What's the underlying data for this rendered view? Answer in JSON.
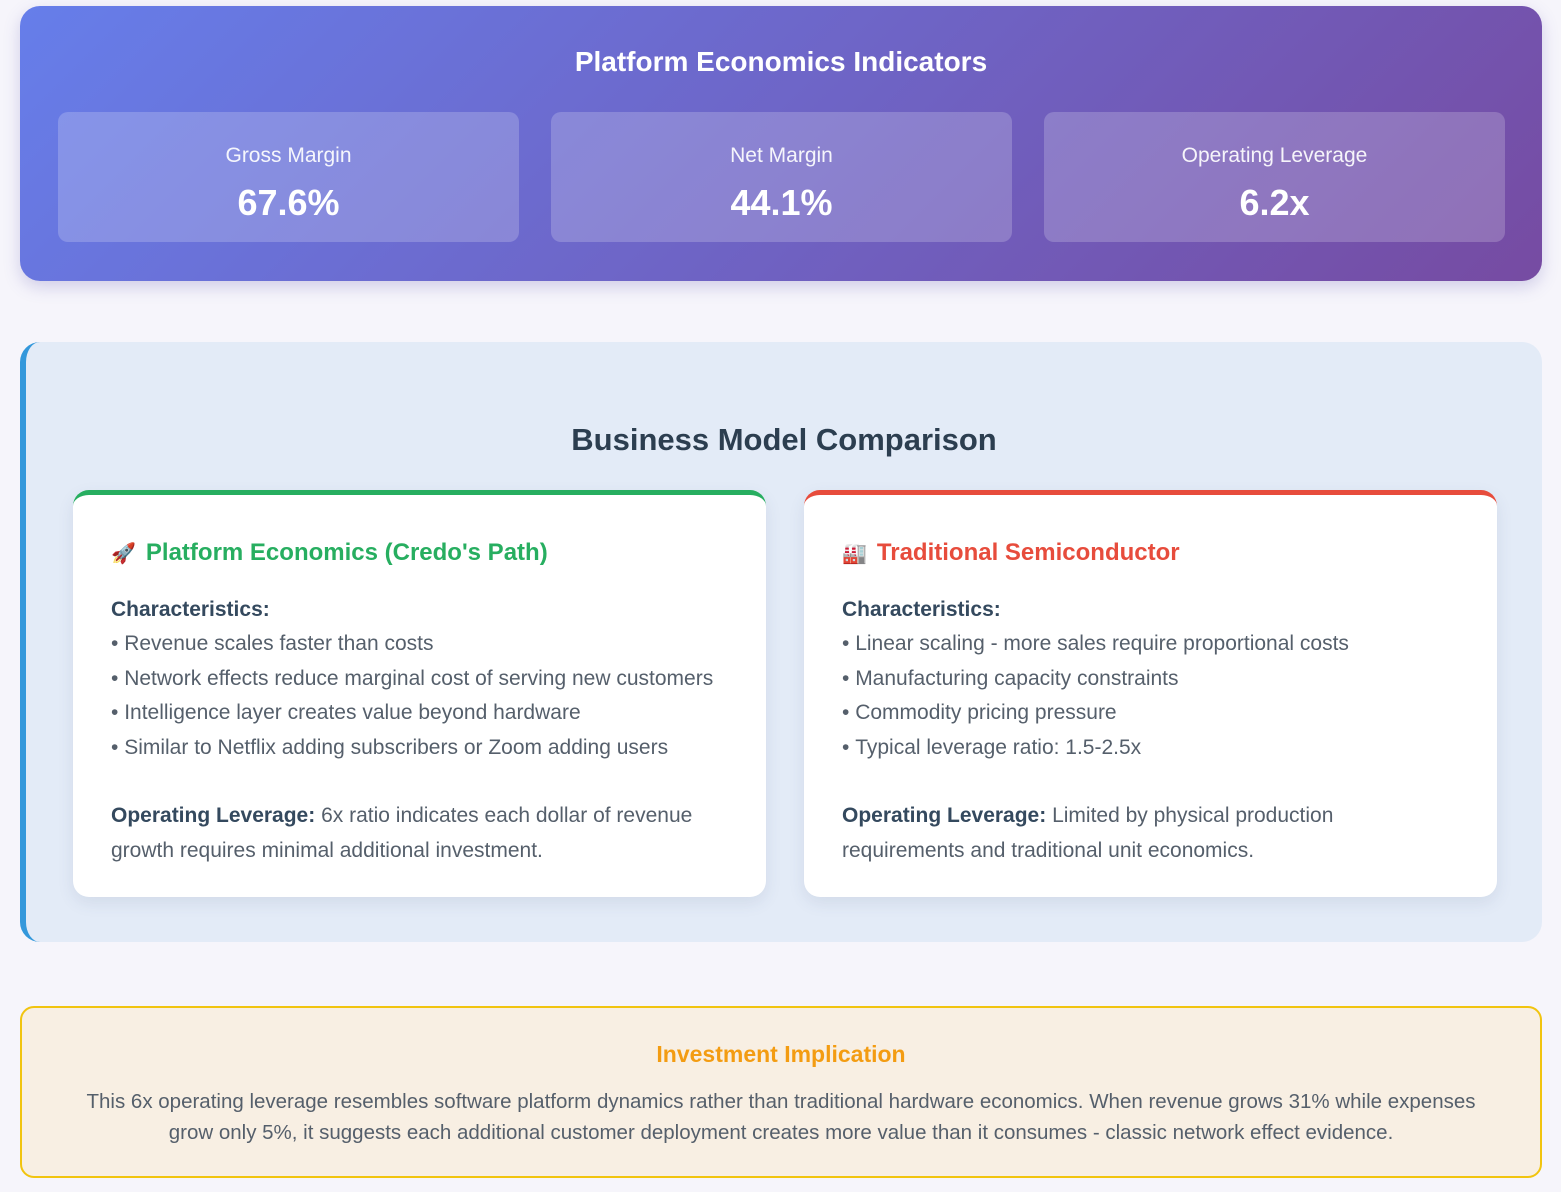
{
  "indicators": {
    "title": "Platform Economics Indicators",
    "items": [
      {
        "label": "Gross Margin",
        "value": "67.6%"
      },
      {
        "label": "Net Margin",
        "value": "44.1%"
      },
      {
        "label": "Operating Leverage",
        "value": "6.2x"
      }
    ]
  },
  "comparison": {
    "title": "Business Model Comparison",
    "cards": [
      {
        "icon": "🚀",
        "title": "Platform Economics (Credo's Path)",
        "subtitle": "Characteristics:",
        "bullets": [
          "Revenue scales faster than costs",
          "Network effects reduce marginal cost of serving new customers",
          "Intelligence layer creates value beyond hardware",
          "Similar to Netflix adding subscribers or Zoom adding users"
        ],
        "leverage_label": "Operating Leverage:",
        "leverage_text": "6x ratio indicates each dollar of revenue growth requires minimal additional investment."
      },
      {
        "icon": "🏭",
        "title": "Traditional Semiconductor",
        "subtitle": "Characteristics:",
        "bullets": [
          "Linear scaling - more sales require proportional costs",
          "Manufacturing capacity constraints",
          "Commodity pricing pressure",
          "Typical leverage ratio: 1.5-2.5x"
        ],
        "leverage_label": "Operating Leverage:",
        "leverage_text": "Limited by physical production requirements and traditional unit economics."
      }
    ]
  },
  "implication": {
    "title": "Investment Implication",
    "text": "This 6x operating leverage resembles software platform dynamics rather than traditional hardware economics. When revenue grows 31% while expenses grow only 5%, it suggests each additional customer deployment creates more value than it consumes - classic network effect evidence."
  }
}
